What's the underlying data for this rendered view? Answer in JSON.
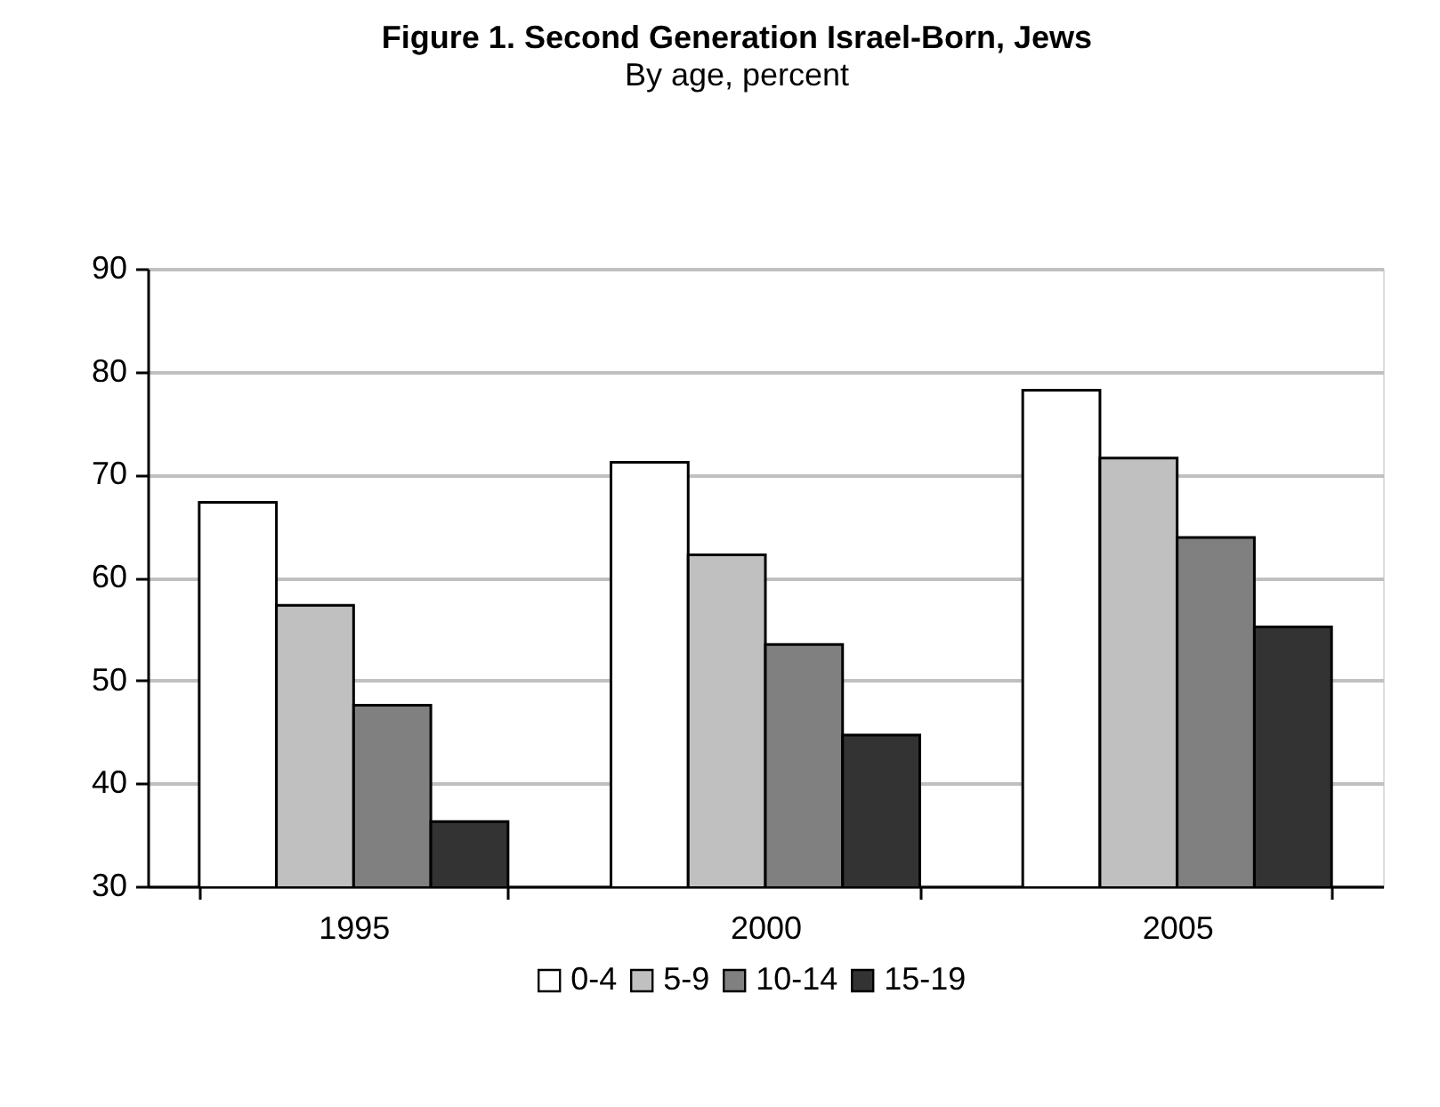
{
  "chart_data": {
    "type": "bar",
    "title": "Figure 1. Second Generation Israel-Born, Jews",
    "subtitle": "By age, percent",
    "categories": [
      "1995",
      "2000",
      "2005"
    ],
    "series": [
      {
        "name": "0-4",
        "color": "#ffffff",
        "values": [
          67.3,
          71.2,
          78.2
        ]
      },
      {
        "name": "5-9",
        "color": "#c0c0c0",
        "values": [
          57.3,
          62.2,
          71.6
        ]
      },
      {
        "name": "10-14",
        "color": "#808080",
        "values": [
          47.6,
          53.5,
          63.9
        ]
      },
      {
        "name": "15-19",
        "color": "#333333",
        "values": [
          36.3,
          44.7,
          55.2
        ]
      }
    ],
    "ylim": [
      30,
      90
    ],
    "yticks": [
      30,
      40,
      50,
      60,
      70,
      80,
      90
    ],
    "grid": "y",
    "legend": "bottom"
  }
}
